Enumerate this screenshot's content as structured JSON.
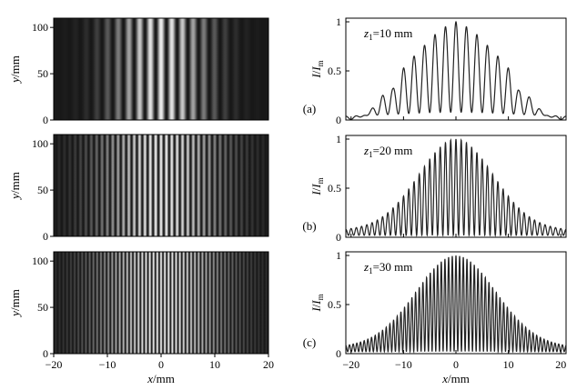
{
  "chart_data": [
    {
      "type": "heatmap",
      "panel": "a",
      "xlabel": "",
      "ylabel": "y/mm",
      "xlim": [
        -20,
        20
      ],
      "ylim": [
        0,
        110
      ],
      "xticks": [],
      "yticks": [
        0,
        50,
        100
      ],
      "fringe_period_mm": 2.0,
      "envelope_halfwidth_mm": 10
    },
    {
      "type": "line",
      "panel": "a",
      "label": "(a)",
      "annotation": "z1=10 mm",
      "xlabel": "",
      "ylabel": "I/Im",
      "xlim": [
        -21,
        21
      ],
      "ylim": [
        0,
        1
      ],
      "xticks": [],
      "yticks": [
        0,
        0.5,
        1
      ],
      "fringe_period_mm": 2.0,
      "peaks": [
        {
          "x": -12,
          "y": 0.32
        },
        {
          "x": -10,
          "y": 0.53
        },
        {
          "x": -8,
          "y": 0.65
        },
        {
          "x": -6,
          "y": 0.76
        },
        {
          "x": -4,
          "y": 0.87
        },
        {
          "x": -2,
          "y": 0.95
        },
        {
          "x": 0,
          "y": 1.0
        },
        {
          "x": 2,
          "y": 0.95
        },
        {
          "x": 4,
          "y": 0.87
        },
        {
          "x": 6,
          "y": 0.76
        },
        {
          "x": 8,
          "y": 0.65
        },
        {
          "x": 10,
          "y": 0.53
        },
        {
          "x": 12,
          "y": 0.3
        }
      ]
    },
    {
      "type": "heatmap",
      "panel": "b",
      "xlabel": "",
      "ylabel": "y/mm",
      "xlim": [
        -20,
        20
      ],
      "ylim": [
        0,
        110
      ],
      "xticks": [],
      "yticks": [
        0,
        50,
        100
      ],
      "fringe_period_mm": 1.0,
      "envelope_halfwidth_mm": 13
    },
    {
      "type": "line",
      "panel": "b",
      "label": "(b)",
      "annotation": "z1=20 mm",
      "xlabel": "",
      "ylabel": "I/Im",
      "xlim": [
        -21,
        21
      ],
      "ylim": [
        0,
        1
      ],
      "xticks": [],
      "yticks": [
        0,
        0.5,
        1
      ],
      "fringe_period_mm": 1.0,
      "envelope_sigma_mm": 7.0,
      "edge_ripple_level": 0.08
    },
    {
      "type": "heatmap",
      "panel": "c",
      "xlabel": "x/mm",
      "ylabel": "y/mm",
      "xlim": [
        -20,
        20
      ],
      "ylim": [
        0,
        110
      ],
      "xticks": [
        -20,
        -10,
        0,
        10,
        20
      ],
      "yticks": [
        0,
        50,
        100
      ],
      "fringe_period_mm": 0.7,
      "envelope_halfwidth_mm": 14
    },
    {
      "type": "line",
      "panel": "c",
      "label": "(c)",
      "annotation": "z1=30 mm",
      "xlabel": "x/mm",
      "ylabel": "I/Im",
      "xlim": [
        -21,
        21
      ],
      "ylim": [
        0,
        1
      ],
      "xticks": [
        -20,
        -10,
        0,
        10,
        20
      ],
      "yticks": [
        0,
        0.5,
        1
      ],
      "fringe_period_mm": 0.7,
      "envelope_sigma_mm": 7.5,
      "edge_ripple_level": 0.07
    }
  ],
  "colors": {
    "axis": "#000000",
    "curve": "#222222",
    "fringe_dark": "#0c0c0c",
    "fringe_bright": "#f4f4f4"
  }
}
